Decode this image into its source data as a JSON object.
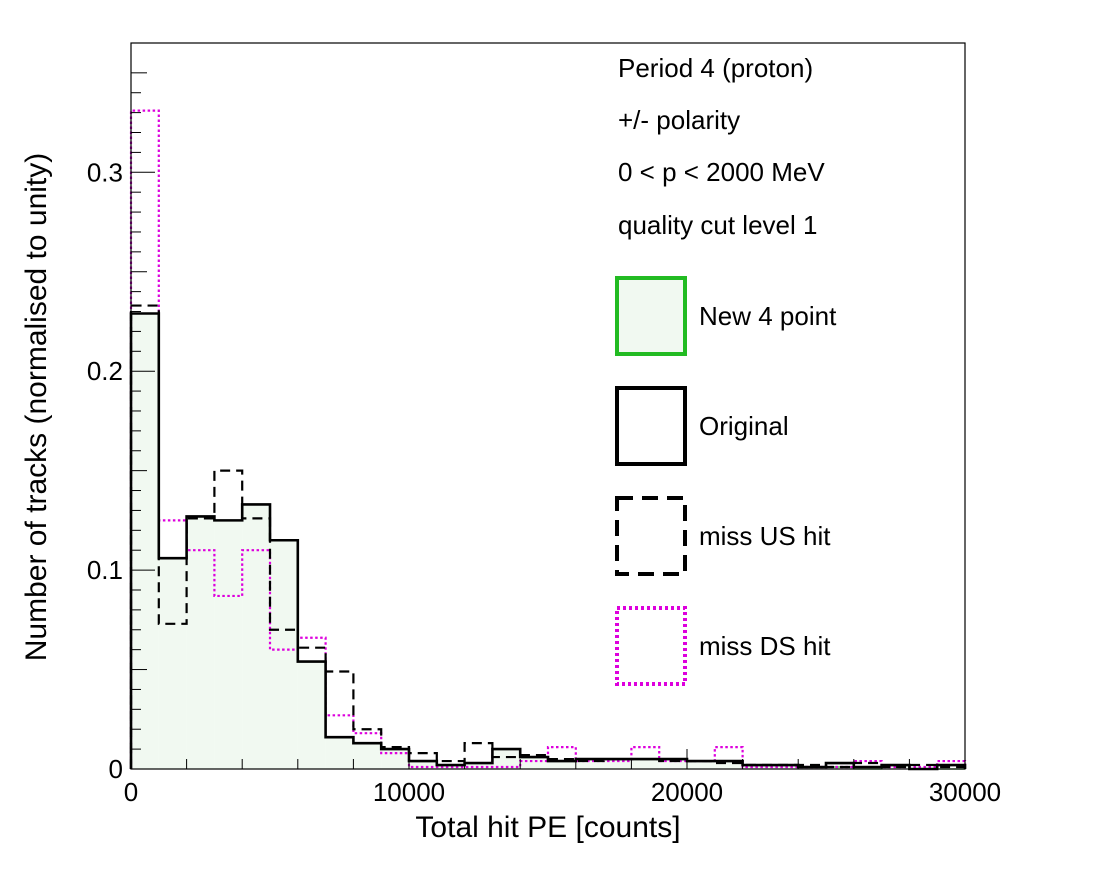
{
  "chart_data": {
    "type": "histogram",
    "xlabel": "Total hit PE [counts]",
    "ylabel": "Number of tracks (normalised to unity)",
    "xlim": [
      0,
      30000
    ],
    "ylim": [
      0,
      0.365
    ],
    "bin_width": 1000,
    "x_ticks": [
      0,
      10000,
      20000,
      30000
    ],
    "x_tick_labels": [
      "0",
      "10000",
      "20000",
      "30000"
    ],
    "y_ticks": [
      0,
      0.1,
      0.2,
      0.3
    ],
    "y_tick_labels": [
      "0",
      "0.1",
      "0.2",
      "0.3"
    ],
    "grid": false,
    "annotations": [
      "Period 4 (proton)",
      "+/- polarity",
      "0 < p < 2000 MeV",
      "quality cut level 1"
    ],
    "legend_position": "right",
    "series": [
      {
        "name": "New 4 point",
        "color": "#22bb22",
        "fill": "#f1f9f1",
        "style": "filled",
        "values": [
          0.229,
          0.106,
          0.127,
          0.125,
          0.133,
          0.115,
          0.054,
          0.016,
          0.013,
          0.01,
          0.004,
          0.002,
          0.003,
          0.01,
          0.006,
          0.004,
          0.005,
          0.005,
          0.005,
          0.005,
          0.004,
          0.004,
          0.002,
          0.002,
          0.001,
          0.001,
          0.0,
          0.002,
          0.0,
          0.0
        ]
      },
      {
        "name": "Original",
        "color": "#000000",
        "style": "solid",
        "values": [
          0.229,
          0.106,
          0.127,
          0.125,
          0.133,
          0.115,
          0.054,
          0.016,
          0.013,
          0.01,
          0.004,
          0.002,
          0.003,
          0.01,
          0.006,
          0.004,
          0.005,
          0.005,
          0.005,
          0.005,
          0.004,
          0.004,
          0.002,
          0.002,
          0.001,
          0.003,
          0.001,
          0.002,
          0.0,
          0.002
        ]
      },
      {
        "name": "miss US hit",
        "color": "#000000",
        "style": "dashed",
        "values": [
          0.233,
          0.073,
          0.126,
          0.15,
          0.126,
          0.07,
          0.061,
          0.049,
          0.02,
          0.011,
          0.008,
          0.004,
          0.013,
          0.006,
          0.007,
          0.005,
          0.004,
          0.005,
          0.005,
          0.004,
          0.004,
          0.003,
          0.002,
          0.002,
          0.002,
          0.001,
          0.003,
          0.001,
          0.002,
          0.001
        ]
      },
      {
        "name": "miss DS hit",
        "color": "#dd00dd",
        "style": "dotted",
        "values": [
          0.331,
          0.125,
          0.11,
          0.087,
          0.11,
          0.06,
          0.066,
          0.027,
          0.018,
          0.008,
          0.001,
          0.001,
          0.001,
          0.001,
          0.004,
          0.011,
          0.004,
          0.004,
          0.011,
          0.004,
          0.004,
          0.011,
          0.001,
          0.001,
          0.001,
          0.001,
          0.004,
          0.001,
          0.001,
          0.004
        ]
      }
    ]
  }
}
